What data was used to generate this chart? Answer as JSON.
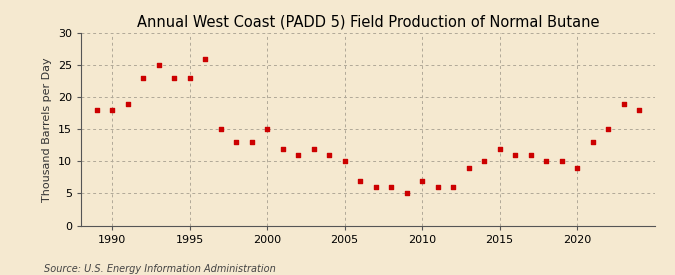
{
  "title": "Annual West Coast (PADD 5) Field Production of Normal Butane",
  "ylabel": "Thousand Barrels per Day",
  "source": "Source: U.S. Energy Information Administration",
  "background_color": "#f5e9d0",
  "marker_color": "#cc0000",
  "years": [
    1989,
    1990,
    1991,
    1992,
    1993,
    1994,
    1995,
    1996,
    1997,
    1998,
    1999,
    2000,
    2001,
    2002,
    2003,
    2004,
    2005,
    2006,
    2007,
    2008,
    2009,
    2010,
    2011,
    2012,
    2013,
    2014,
    2015,
    2016,
    2017,
    2018,
    2019,
    2020,
    2021,
    2022,
    2023,
    2024
  ],
  "values": [
    18,
    18,
    19,
    23,
    25,
    23,
    23,
    26,
    15,
    13,
    13,
    15,
    12,
    11,
    12,
    11,
    10,
    7,
    6,
    6,
    5,
    7,
    6,
    6,
    9,
    10,
    12,
    11,
    11,
    10,
    10,
    9,
    13,
    15,
    19,
    18
  ],
  "xlim": [
    1988,
    2025
  ],
  "ylim": [
    0,
    30
  ],
  "yticks": [
    0,
    5,
    10,
    15,
    20,
    25,
    30
  ],
  "xticks": [
    1990,
    1995,
    2000,
    2005,
    2010,
    2015,
    2020
  ],
  "grid_color": "#b0a898",
  "title_fontsize": 10.5,
  "label_fontsize": 8,
  "tick_fontsize": 8,
  "source_fontsize": 7
}
